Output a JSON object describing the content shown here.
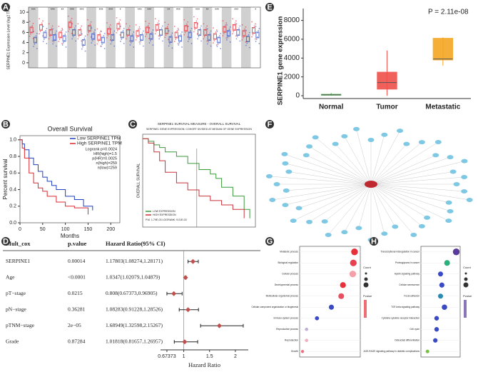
{
  "panel_labels": [
    "A",
    "B",
    "C",
    "D",
    "E",
    "F",
    "G",
    "H"
  ],
  "chart_data": [
    {
      "type": "pan-box",
      "ylabel": "SERPINE1 Expression Level (log2 TPM)",
      "categories": [
        null,
        null,
        null,
        null,
        null,
        null,
        null,
        null,
        null,
        null,
        null,
        null,
        null,
        null,
        null,
        null,
        null,
        null,
        null,
        null,
        null,
        null,
        null,
        null
      ],
      "series": [
        {
          "color": "#e8303a",
          "values": [
            6.5,
            7,
            6,
            5.5,
            7.5,
            6,
            6.8,
            5,
            6.2,
            7.2,
            6,
            5.8,
            6.5,
            7,
            6.3,
            5.5,
            6.8,
            7.4,
            6,
            5.2,
            6.6,
            7,
            5.8,
            6.4
          ]
        },
        {
          "color": "#3a55c4",
          "values": [
            4.5,
            5.5,
            5,
            4.8,
            6,
            4,
            5.2,
            4.5,
            5,
            5.5,
            4.8,
            5,
            5.2,
            6,
            4.6,
            4.8,
            5.5,
            6,
            5,
            4.5,
            5.8,
            6,
            4.7,
            5.5
          ]
        }
      ],
      "significance": [
        "***",
        null,
        "***",
        "**",
        "***",
        "***",
        null,
        "***",
        "***",
        "*",
        null,
        "***",
        "***",
        null,
        "**",
        "***",
        null,
        "***",
        "**",
        "***",
        null,
        "***",
        null,
        "*"
      ],
      "ylim": [
        -1,
        11
      ],
      "yticks": [
        0,
        2,
        4,
        6,
        8,
        10
      ]
    },
    {
      "type": "km",
      "title": "Overall Survival",
      "xlabel": "Months",
      "ylabel": "Percent survival",
      "series": [
        {
          "name": "Low SERPINE1 TPM",
          "color": "#1f3fbf",
          "x": [
            0,
            5,
            10,
            20,
            30,
            40,
            50,
            60,
            70,
            80,
            100,
            120,
            140,
            160
          ],
          "values": [
            1,
            0.95,
            0.88,
            0.78,
            0.7,
            0.62,
            0.55,
            0.5,
            0.45,
            0.4,
            0.32,
            0.28,
            0.2,
            0.15
          ]
        },
        {
          "name": "High SERPINE1 TPM",
          "color": "#d9282f",
          "x": [
            0,
            5,
            10,
            20,
            30,
            40,
            50,
            60,
            80,
            100,
            120,
            150
          ],
          "values": [
            1,
            0.9,
            0.78,
            0.6,
            0.48,
            0.42,
            0.38,
            0.32,
            0.25,
            0.2,
            0.18,
            0.1
          ]
        }
      ],
      "stats": [
        "Logrank p=0.0024",
        "HR(high)=1.5",
        "p(HR)=0.0025",
        "n(high)=259",
        "n(low)=259"
      ],
      "xlim": [
        0,
        220
      ],
      "xticks": [
        0,
        50,
        100,
        150,
        200
      ],
      "ylim": [
        0,
        1.05
      ],
      "yticks": [
        {
          "value": 0,
          "label": "0.0"
        },
        {
          "value": 0.2,
          "label": "0.2"
        },
        {
          "value": 0.4,
          "label": "0.4"
        },
        {
          "value": 0.6,
          "label": "0.6"
        },
        {
          "value": 0.8,
          "label": "0.8"
        },
        {
          "value": 1,
          "label": "1.0"
        }
      ]
    },
    {
      "type": "km",
      "title": "SERPINE1 SURVIVAL MEASURE - OVERALL SURVIVAL",
      "subtitle": "SERPINE1 GENE EXPRESSION: COHORT DIVIDED AT MEDIAN OF GENE EXPRESSION",
      "ylabel": "OVERALL SURVIVAL",
      "series": [
        {
          "name": "LOW EXPRESSION",
          "color": "#3a9a3a",
          "x": [
            0,
            5,
            10,
            15,
            20,
            30,
            40,
            50,
            60,
            65,
            70,
            80,
            90,
            95
          ],
          "values": [
            1,
            0.97,
            0.93,
            0.9,
            0.85,
            0.8,
            0.72,
            0.65,
            0.6,
            0.55,
            0.45,
            0.35,
            0.2,
            0.1
          ]
        },
        {
          "name": "HIGH EXPRESSION",
          "color": "#c8323a",
          "x": [
            0,
            5,
            10,
            15,
            20,
            30,
            40,
            50,
            60,
            70,
            80,
            90
          ],
          "values": [
            1,
            0.95,
            0.85,
            0.75,
            0.62,
            0.5,
            0.42,
            0.35,
            0.3,
            0.25,
            0.2,
            0.1
          ]
        }
      ],
      "stats": [
        "P.M. 1.79E-03 LOGRANK: 9.01E-03"
      ],
      "xlim": [
        0,
        100
      ],
      "ylim": [
        0,
        1.05
      ]
    },
    {
      "type": "forest",
      "columns": [
        "Mult_cox",
        "p.value",
        "Hazard Ratio(95% CI)"
      ],
      "categories": [
        "SERPINE1",
        "Age",
        "pT−stage",
        "pN−stage",
        "pTNM−stage",
        "Grade"
      ],
      "p_values": [
        "0.00014",
        "<0.0001",
        "0.0215",
        "0.36281",
        "2e−05",
        "0.87284"
      ],
      "ci_labels": [
        "1.17803(1.08274,1.28171)",
        "1.0347(1.02079,1.04879)",
        "0.808(0.67373,0.96905)",
        "1.08283(0.91228,1.28526)",
        "1.68949(1.32598,2.15267)",
        "1.01818(0.81657,1.26957)"
      ],
      "values": [
        1.17803,
        1.0347,
        0.808,
        1.08283,
        1.68949,
        1.01818
      ],
      "lower": [
        1.08274,
        1.02079,
        0.67373,
        0.91228,
        1.32598,
        0.81657
      ],
      "upper": [
        1.28171,
        1.04879,
        0.96905,
        1.28526,
        2.15267,
        1.26957
      ],
      "color": "#c0504d",
      "xlabel": "Hazard Ratio",
      "xlim": [
        0.55,
        2.25
      ],
      "xticks": [
        0.67373,
        1,
        1.5,
        2
      ]
    },
    {
      "type": "box",
      "ylabel": "SERPINE1 gene expression",
      "annotation": "P = 2.11e-08",
      "categories": [
        "Normal",
        "Tumor",
        "Metastatic"
      ],
      "colors": [
        "#5cb85c",
        "#f0504a",
        "#f5a623"
      ],
      "min": [
        0,
        0,
        3200
      ],
      "q1": [
        50,
        700,
        3800
      ],
      "median": [
        100,
        1400,
        3900
      ],
      "q3": [
        150,
        2500,
        6100
      ],
      "max": [
        300,
        4800,
        6200
      ],
      "ylim": [
        -300,
        8500
      ],
      "yticks": [
        0,
        2000,
        4000,
        6000,
        8000
      ]
    },
    {
      "type": "network"
    },
    {
      "type": "dot",
      "legend": [
        "Count",
        "Pvalue"
      ],
      "categories": [
        "Metabolic process",
        "Biological regulation",
        "Cellular process",
        "Developmental process",
        "Multicellular organismal process",
        "Cellular component organization or biogenesis",
        "Immune system process",
        "Reproductive process",
        "Reproduction",
        "Growth"
      ],
      "values": [
        0.95,
        0.93,
        0.92,
        0.75,
        0.72,
        0.55,
        0.3,
        0.12,
        0.12,
        0.05
      ],
      "colors": [
        "#e8303a",
        "#e84050",
        "#f5a0a8",
        "#e8303a",
        "#e85060",
        "#3a4ac4",
        "#3a4ac4",
        "#c0b0d8",
        "#f0b0c0",
        "#e87080"
      ],
      "xlim": [
        0,
        1.05
      ]
    },
    {
      "type": "dot",
      "legend": [
        "Count",
        "Pvalue"
      ],
      "categories": [
        "Transcriptional misregulation in cancer",
        "Proteoglycans in cancer",
        "Apelin signaling pathway",
        "Cellular senescence",
        "Focal adhesion",
        "TGF-beta signaling pathway",
        "Cytokine-cytokine receptor interaction",
        "Cell cycle",
        "Osteoclast differentiation",
        "AGE-RAGE signaling pathway in diabetic complications"
      ],
      "values": [
        0.27,
        0.2,
        0.15,
        0.16,
        0.15,
        0.18,
        0.12,
        0.12,
        0.11,
        0.05
      ],
      "colors": [
        "#5a3a9a",
        "#2ab07a",
        "#3a4ac4",
        "#3a4ac4",
        "#2a8ab0",
        "#3a4ac4",
        "#3a4ac4",
        "#3a4ac4",
        "#3a4ac4",
        "#7ac040"
      ],
      "xlim": [
        0,
        0.3
      ]
    }
  ]
}
